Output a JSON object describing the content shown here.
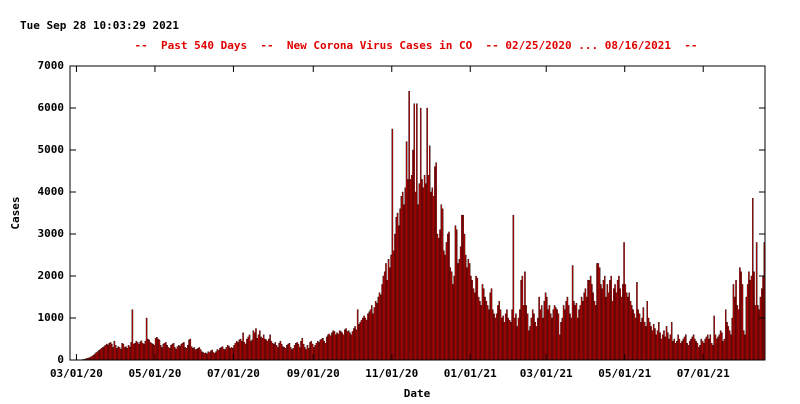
{
  "timestamp": "Tue Sep 28 10:03:29 2021",
  "chart_data": {
    "type": "bar",
    "title": "--  Past 540 Days  --  New Corona Virus Cases in CO  -- 02/25/2020 ... 08/16/2021  --",
    "xlabel": "Date",
    "ylabel": "Cases",
    "color": "#cc0000",
    "edgecolor": "#000000",
    "xlim": [
      0,
      540
    ],
    "xticks": [
      {
        "value": 5,
        "label": "03/01/20"
      },
      {
        "value": 66,
        "label": "05/01/20"
      },
      {
        "value": 127,
        "label": "07/01/20"
      },
      {
        "value": 189,
        "label": "09/01/20"
      },
      {
        "value": 250,
        "label": "11/01/20"
      },
      {
        "value": 311,
        "label": "01/01/21"
      },
      {
        "value": 370,
        "label": "03/01/21"
      },
      {
        "value": 431,
        "label": "05/01/21"
      },
      {
        "value": 492,
        "label": "07/01/21"
      }
    ],
    "ylim": [
      0,
      7000
    ],
    "yticks": [
      0,
      1000,
      2000,
      3000,
      4000,
      5000,
      6000,
      7000
    ],
    "values": [
      0,
      0,
      0,
      0,
      0,
      0,
      2,
      5,
      8,
      10,
      15,
      20,
      30,
      40,
      50,
      60,
      80,
      100,
      120,
      150,
      180,
      200,
      230,
      250,
      280,
      300,
      320,
      350,
      380,
      360,
      400,
      420,
      380,
      300,
      450,
      350,
      280,
      320,
      300,
      260,
      400,
      380,
      300,
      320,
      280,
      350,
      310,
      420,
      1200,
      380,
      400,
      450,
      420,
      380,
      430,
      460,
      400,
      380,
      450,
      1000,
      500,
      480,
      420,
      400,
      380,
      350,
      520,
      540,
      500,
      480,
      350,
      300,
      380,
      400,
      420,
      350,
      300,
      280,
      350,
      380,
      400,
      300,
      260,
      320,
      350,
      330,
      380,
      400,
      420,
      300,
      280,
      350,
      480,
      500,
      320,
      280,
      300,
      250,
      260,
      280,
      300,
      250,
      200,
      180,
      160,
      170,
      150,
      200,
      180,
      220,
      240,
      180,
      160,
      200,
      250,
      230,
      280,
      300,
      320,
      260,
      250,
      300,
      350,
      330,
      280,
      300,
      280,
      350,
      400,
      450,
      420,
      480,
      500,
      450,
      650,
      420,
      380,
      500,
      550,
      600,
      450,
      480,
      700,
      650,
      750,
      520,
      600,
      700,
      550,
      520,
      600,
      500,
      480,
      450,
      500,
      600,
      450,
      400,
      380,
      420,
      350,
      300,
      400,
      450,
      380,
      320,
      300,
      280,
      350,
      380,
      400,
      300,
      250,
      280,
      350,
      400,
      420,
      380,
      300,
      450,
      520,
      380,
      300,
      250,
      350,
      280,
      420,
      450,
      380,
      300,
      350,
      400,
      450,
      420,
      480,
      500,
      520,
      450,
      400,
      550,
      600,
      620,
      580,
      650,
      700,
      680,
      600,
      650,
      620,
      700,
      680,
      650,
      600,
      720,
      750,
      680,
      700,
      650,
      600,
      680,
      750,
      800,
      720,
      1200,
      850,
      900,
      950,
      1000,
      1050,
      1000,
      950,
      1100,
      1150,
      1200,
      1300,
      1100,
      1250,
      1400,
      1350,
      1500,
      1600,
      1550,
      1800,
      2000,
      2100,
      2300,
      1900,
      2400,
      2200,
      2500,
      5500,
      2600,
      3000,
      3400,
      3500,
      3200,
      3600,
      3900,
      4000,
      3700,
      4100,
      5200,
      4300,
      6400,
      4300,
      4400,
      5000,
      6100,
      4000,
      6100,
      3700,
      4200,
      6000,
      4300,
      4100,
      4400,
      4200,
      6000,
      4400,
      5100,
      4000,
      4100,
      3900,
      4600,
      4700,
      3000,
      2900,
      3100,
      3700,
      3600,
      2600,
      2500,
      2800,
      3000,
      3050,
      2200,
      2100,
      1800,
      2000,
      3200,
      3100,
      2300,
      2400,
      2700,
      3450,
      3450,
      3000,
      2500,
      2200,
      2400,
      2300,
      2000,
      1900,
      1700,
      1600,
      2000,
      1950,
      1500,
      1400,
      1300,
      1800,
      1700,
      1500,
      1400,
      1300,
      1200,
      1600,
      1700,
      1200,
      1100,
      1000,
      1100,
      1300,
      1400,
      1200,
      1000,
      1050,
      900,
      1100,
      1200,
      1000,
      950,
      900,
      1200,
      3450,
      1000,
      1100,
      800,
      1000,
      1200,
      1900,
      2000,
      1300,
      2100,
      1300,
      1100,
      700,
      800,
      1000,
      1200,
      1100,
      900,
      800,
      1000,
      1500,
      1200,
      1300,
      1000,
      1400,
      1600,
      1500,
      1200,
      1300,
      1100,
      1000,
      1200,
      1300,
      1250,
      1200,
      1100,
      600,
      900,
      1000,
      1300,
      1200,
      1400,
      1500,
      1300,
      1100,
      1000,
      2250,
      1400,
      1300,
      1350,
      1000,
      1200,
      1300,
      1500,
      1400,
      1600,
      1700,
      1500,
      1900,
      1900,
      2000,
      1800,
      1600,
      1400,
      1300,
      2300,
      2300,
      2200,
      1800,
      1700,
      1900,
      2000,
      1500,
      1800,
      1600,
      1900,
      2000,
      1400,
      1700,
      1800,
      1600,
      1900,
      2000,
      1700,
      1500,
      1800,
      2800,
      1800,
      1600,
      1500,
      1600,
      1400,
      1300,
      1200,
      1100,
      1000,
      1850,
      1200,
      1100,
      900,
      1000,
      1250,
      900,
      800,
      1400,
      1000,
      900,
      800,
      700,
      850,
      750,
      600,
      700,
      900,
      650,
      500,
      600,
      700,
      550,
      800,
      650,
      500,
      600,
      900,
      450,
      500,
      400,
      450,
      600,
      500,
      400,
      450,
      500,
      550,
      600,
      400,
      350,
      450,
      500,
      550,
      600,
      500,
      450,
      400,
      300,
      350,
      500,
      450,
      400,
      500,
      550,
      600,
      500,
      600,
      400,
      350,
      1050,
      600,
      500,
      550,
      600,
      700,
      650,
      450,
      500,
      1200,
      900,
      800,
      700,
      600,
      1000,
      1800,
      1500,
      1900,
      1300,
      1200,
      2200,
      2100,
      1800,
      700,
      600,
      1500,
      1800,
      2100,
      1900,
      2000,
      3850,
      2100,
      1300,
      2800,
      1300,
      1200,
      1500,
      1700,
      2000,
      2800
    ]
  }
}
